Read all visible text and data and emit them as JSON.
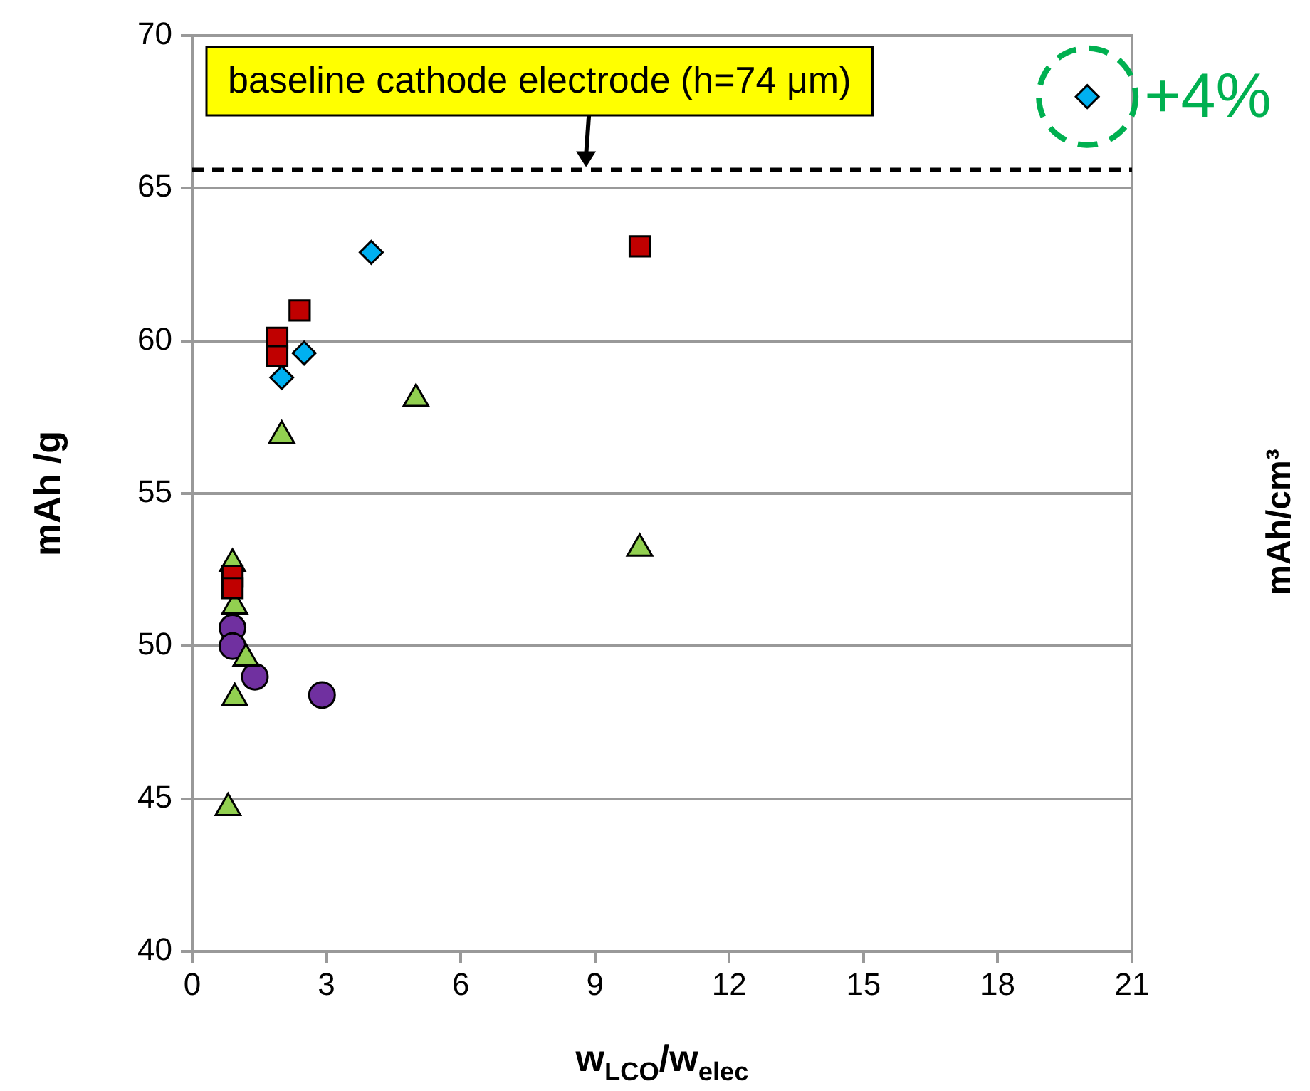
{
  "chart_data": {
    "type": "scatter",
    "xlabel": "w$_{LCO}$/w$_{elec}$",
    "ylabel": "mAh /g",
    "y2label": "mAh/cm³",
    "xlim": [
      0,
      21
    ],
    "xticks": [
      0,
      3,
      6,
      9,
      12,
      15,
      18,
      21
    ],
    "ylim": [
      40,
      70
    ],
    "yticks": [
      40,
      45,
      50,
      55,
      60,
      65,
      70
    ],
    "grid": "y",
    "legend": false,
    "series": [
      {
        "color": "#00b0f0",
        "marker": "diamond",
        "x": [
          4,
          2.5,
          2,
          20
        ],
        "values": [
          62.9,
          59.6,
          58.8,
          68
        ]
      },
      {
        "color": "#c00000",
        "marker": "square",
        "x": [
          10,
          2.4,
          1.9,
          1.9,
          0.9,
          0.9
        ],
        "values": [
          63.1,
          61,
          60.1,
          59.5,
          52.3,
          51.9
        ]
      },
      {
        "color": "#92d050",
        "marker": "triangle",
        "x": [
          5,
          2,
          10,
          0.9,
          0.95,
          1.2,
          0.95,
          0.8
        ],
        "values": [
          58.1,
          56.9,
          53.2,
          52.7,
          51.3,
          49.6,
          48.3,
          44.7
        ]
      },
      {
        "color": "#7030a0",
        "marker": "circle",
        "x": [
          0.9,
          0.9,
          1.4,
          2.9
        ],
        "values": [
          50.6,
          50,
          49,
          48.4
        ]
      }
    ],
    "ref_lines": [
      {
        "axis": "y",
        "value": 65.6,
        "color": "#000000",
        "line_style": "dashed"
      }
    ],
    "annotations": [
      {
        "text": "baseline cathode electrode (h=74 μm)",
        "x": 8.8,
        "y": 65.6
      },
      {
        "text": "+4%",
        "x": 20,
        "y": 68
      }
    ]
  }
}
